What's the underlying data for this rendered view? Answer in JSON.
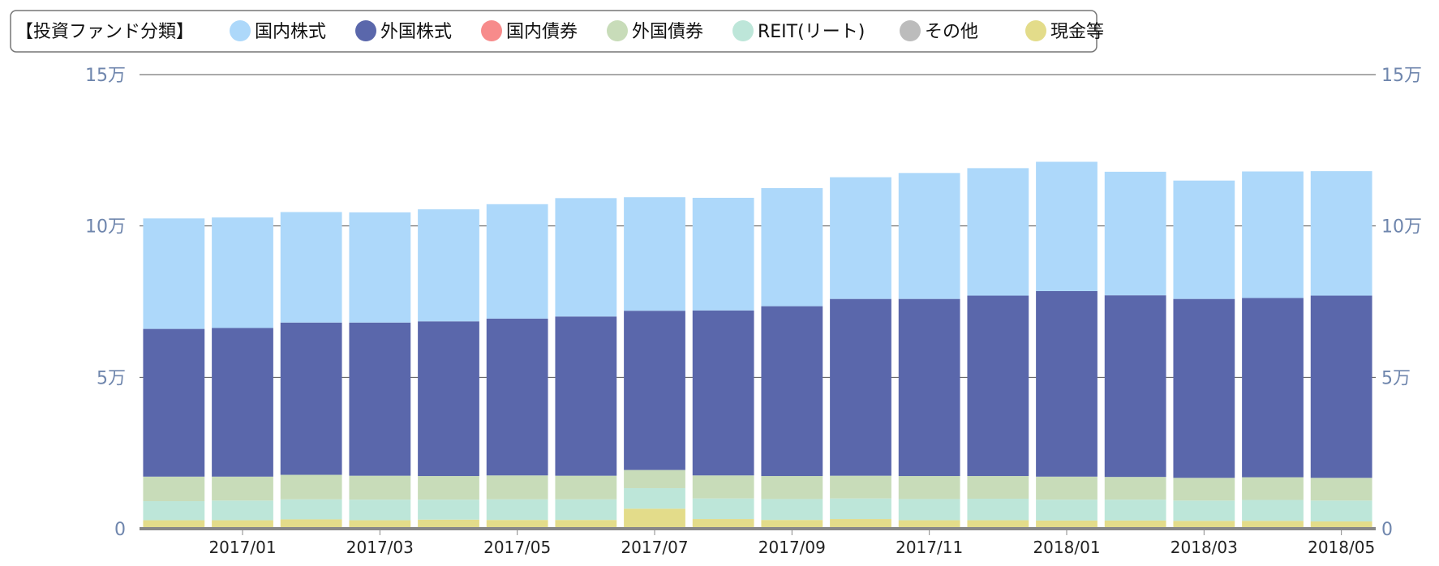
{
  "chart_data": {
    "type": "bar",
    "stacked": true,
    "legend_title": "【投資ファンド分類】",
    "categories": [
      "2016/12",
      "2017/01",
      "2017/02",
      "2017/03",
      "2017/04",
      "2017/05",
      "2017/06",
      "2017/07",
      "2017/08",
      "2017/09",
      "2017/10",
      "2017/11",
      "2017/12",
      "2018/01",
      "2018/02",
      "2018/03",
      "2018/04",
      "2018/05"
    ],
    "x_tick_labels": [
      "2017/01",
      "2017/03",
      "2017/05",
      "2017/07",
      "2017/09",
      "2017/11",
      "2018/01",
      "2018/03",
      "2018/05"
    ],
    "y_ticks": [
      {
        "value": 0,
        "label": "0"
      },
      {
        "value": 50000,
        "label": "5万"
      },
      {
        "value": 100000,
        "label": "10万"
      },
      {
        "value": 150000,
        "label": "15万"
      }
    ],
    "ylim": [
      0,
      150000
    ],
    "grid": true,
    "legend_position": "top",
    "series": [
      {
        "name": "国内株式",
        "color": "#add8fa",
        "values": [
          36500,
          36500,
          36500,
          36400,
          37000,
          37800,
          39100,
          37500,
          37200,
          39000,
          40200,
          41600,
          42100,
          42700,
          40800,
          39100,
          41800,
          41100
        ]
      },
      {
        "name": "外国株式",
        "color": "#5a67ab",
        "values": [
          48800,
          49100,
          50300,
          50600,
          51100,
          51800,
          52600,
          52600,
          54500,
          56100,
          58400,
          58500,
          59600,
          61300,
          60000,
          59100,
          59200,
          60200
        ]
      },
      {
        "name": "国内債券",
        "color": "#f78b8b",
        "values": [
          0,
          0,
          0,
          0,
          0,
          0,
          0,
          0,
          0,
          0,
          0,
          0,
          0,
          0,
          0,
          0,
          0,
          0
        ]
      },
      {
        "name": "外国債券",
        "color": "#c8dcb9",
        "values": [
          8100,
          7900,
          8100,
          7900,
          7800,
          7900,
          7800,
          6000,
          7600,
          7600,
          7500,
          7600,
          7500,
          7600,
          7500,
          7500,
          7500,
          7500
        ]
      },
      {
        "name": "REIT(リート)",
        "color": "#bde6d9",
        "values": [
          6300,
          6500,
          6600,
          6800,
          6600,
          6800,
          6800,
          6800,
          6800,
          6900,
          6800,
          7000,
          7100,
          6900,
          6900,
          6700,
          6900,
          6900
        ]
      },
      {
        "name": "その他",
        "color": "#bcbcbc",
        "values": [
          0,
          0,
          0,
          0,
          0,
          0,
          0,
          0,
          0,
          0,
          0,
          0,
          0,
          0,
          0,
          0,
          0,
          0
        ]
      },
      {
        "name": "現金等",
        "color": "#e3dc8a",
        "values": [
          2800,
          2800,
          3100,
          2800,
          3000,
          2900,
          2900,
          6600,
          3200,
          2900,
          3200,
          2800,
          2800,
          2700,
          2700,
          2600,
          2600,
          2400
        ]
      }
    ]
  }
}
